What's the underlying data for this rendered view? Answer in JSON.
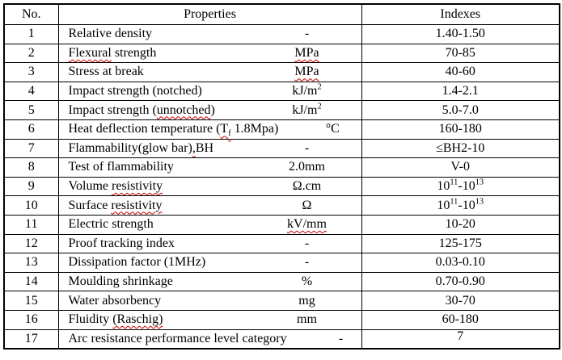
{
  "table": {
    "colors": {
      "border": "#000000",
      "text": "#000000",
      "spellcheck_squiggle": "#cc0000",
      "background": "#ffffff"
    },
    "headers": {
      "no": "No.",
      "properties": "Properties",
      "indexes": "Indexes"
    },
    "rows": [
      {
        "no": "1",
        "name": [
          {
            "t": "Relative density"
          }
        ],
        "unit": [
          {
            "t": "-"
          }
        ],
        "index": [
          {
            "t": "1.40-1.50"
          }
        ]
      },
      {
        "no": "2",
        "name": [
          {
            "t": "Flexural",
            "squiggle": true
          },
          {
            "t": " strength"
          }
        ],
        "unit": [
          {
            "t": "MPa",
            "squiggle": true
          }
        ],
        "index": [
          {
            "t": "70-85"
          }
        ]
      },
      {
        "no": "3",
        "name": [
          {
            "t": "Stress at break"
          }
        ],
        "unit": [
          {
            "t": "MPa",
            "squiggle": true
          }
        ],
        "index": [
          {
            "t": "40-60"
          }
        ]
      },
      {
        "no": "4",
        "name": [
          {
            "t": "Impact strength (notched)"
          }
        ],
        "unit": [
          {
            "t": "kJ/m"
          },
          {
            "t": "2",
            "sup": true
          }
        ],
        "index": [
          {
            "t": "1.4-2.1"
          }
        ]
      },
      {
        "no": "5",
        "name": [
          {
            "t": "Impact strength ("
          },
          {
            "t": "unnotched",
            "squiggle": true
          },
          {
            "t": ")"
          }
        ],
        "unit": [
          {
            "t": "kJ/m"
          },
          {
            "t": "2",
            "sup": true
          }
        ],
        "index": [
          {
            "t": "5.0-7.0"
          }
        ]
      },
      {
        "no": "6",
        "name": [
          {
            "t": "Heat deflection temperature ("
          },
          {
            "t": "T",
            "squiggle": true
          },
          {
            "t": "f",
            "sub": true,
            "squiggle": true
          },
          {
            "t": " 1.8Mpa)"
          }
        ],
        "unit": [
          {
            "t": "°C"
          }
        ],
        "index": [
          {
            "t": "160-180"
          }
        ]
      },
      {
        "no": "7",
        "name": [
          {
            "t": "Flammability(glow bar)"
          },
          {
            "t": ",",
            "squiggle": true
          },
          {
            "t": "BH"
          }
        ],
        "unit": [
          {
            "t": "-"
          }
        ],
        "index": [
          {
            "t": "≤BH2-10"
          }
        ]
      },
      {
        "no": "8",
        "name": [
          {
            "t": "Test of flammability"
          }
        ],
        "unit": [
          {
            "t": "2.0mm"
          }
        ],
        "index": [
          {
            "t": "V-0"
          }
        ]
      },
      {
        "no": "9",
        "name": [
          {
            "t": "Volume "
          },
          {
            "t": "resistivity",
            "squiggle": true
          }
        ],
        "unit": [
          {
            "t": "Ω.cm"
          }
        ],
        "index": [
          {
            "t": "10"
          },
          {
            "t": "11",
            "sup": true
          },
          {
            "t": "-10"
          },
          {
            "t": "13",
            "sup": true
          }
        ]
      },
      {
        "no": "10",
        "name": [
          {
            "t": "Surface "
          },
          {
            "t": "resistivity",
            "squiggle": true
          }
        ],
        "unit": [
          {
            "t": "Ω"
          }
        ],
        "index": [
          {
            "t": "10"
          },
          {
            "t": "11",
            "sup": true
          },
          {
            "t": "-10"
          },
          {
            "t": "13",
            "sup": true
          }
        ]
      },
      {
        "no": "11",
        "name": [
          {
            "t": "Electric strength"
          }
        ],
        "unit": [
          {
            "t": "kV/mm",
            "squiggle": true
          }
        ],
        "index": [
          {
            "t": "10-20"
          }
        ]
      },
      {
        "no": "12",
        "name": [
          {
            "t": "Proof tracking index"
          }
        ],
        "unit": [
          {
            "t": "-"
          }
        ],
        "index": [
          {
            "t": "125-175"
          }
        ]
      },
      {
        "no": "13",
        "name": [
          {
            "t": "Dissipation factor (1MHz)"
          }
        ],
        "unit": [
          {
            "t": "-"
          }
        ],
        "index": [
          {
            "t": "0.03-0.10"
          }
        ]
      },
      {
        "no": "14",
        "name": [
          {
            "t": "Moulding shrinkage"
          }
        ],
        "unit": [
          {
            "t": "%"
          }
        ],
        "index": [
          {
            "t": "0.70-0.90"
          }
        ]
      },
      {
        "no": "15",
        "name": [
          {
            "t": "Water absorbency"
          }
        ],
        "unit": [
          {
            "t": "mg"
          }
        ],
        "index": [
          {
            "t": "30-70"
          }
        ]
      },
      {
        "no": "16",
        "name": [
          {
            "t": "Fluidity "
          },
          {
            "t": "(Raschig)",
            "squiggle": true
          }
        ],
        "unit": [
          {
            "t": "mm"
          }
        ],
        "index": [
          {
            "t": "60-180"
          }
        ]
      },
      {
        "no": "17",
        "name": [
          {
            "t": "Arc resistance performance level category"
          }
        ],
        "unit": [
          {
            "t": "-"
          }
        ],
        "index": [
          {
            "t": "7"
          }
        ],
        "index_top": true
      }
    ]
  }
}
